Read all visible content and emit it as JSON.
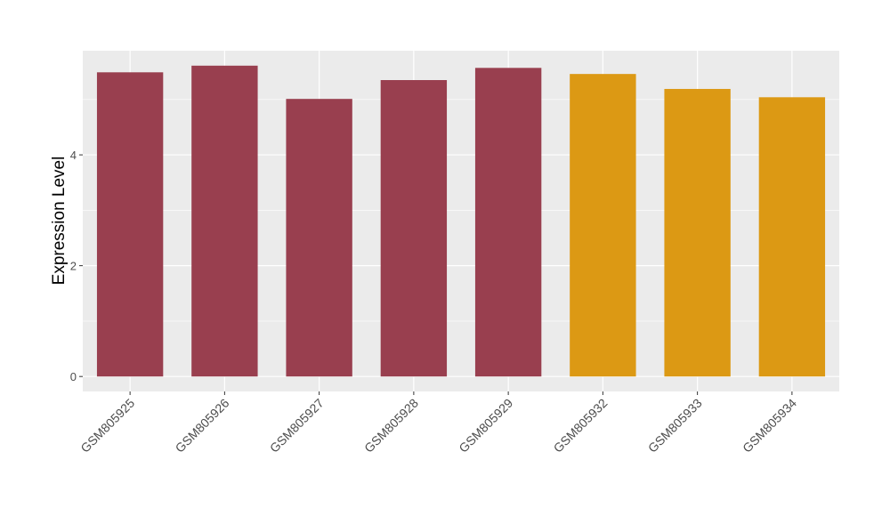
{
  "chart_data": {
    "type": "bar",
    "y_label": "Expression Level",
    "categories": [
      "GSM805925",
      "GSM805926",
      "GSM805927",
      "GSM805928",
      "GSM805929",
      "GSM805932",
      "GSM805933",
      "GSM805934"
    ],
    "values": [
      5.49,
      5.61,
      5.01,
      5.35,
      5.57,
      5.46,
      5.19,
      5.04
    ],
    "colors": [
      "#993f4f",
      "#993f4f",
      "#993f4f",
      "#993f4f",
      "#993f4f",
      "#dc9914",
      "#dc9914",
      "#dc9914"
    ],
    "ylim": [
      -0.27,
      5.88
    ],
    "yticks": [
      0,
      2,
      4
    ],
    "grid": true
  }
}
